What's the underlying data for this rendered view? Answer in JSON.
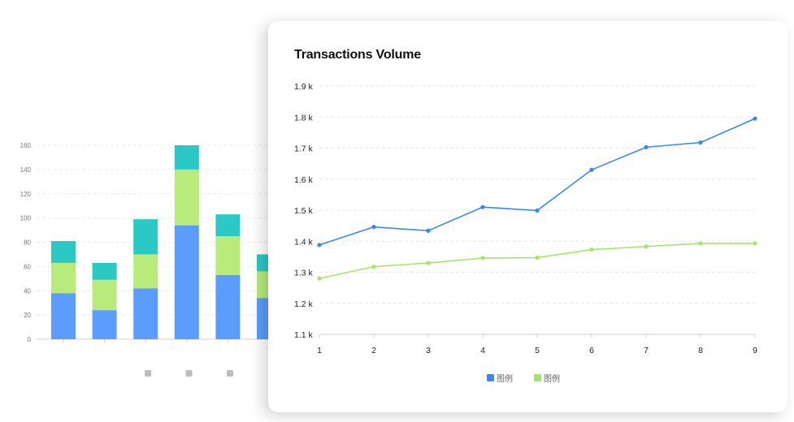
{
  "chart_data": [
    {
      "type": "bar",
      "stacked": true,
      "categories": [
        "",
        "",
        "",
        "",
        "",
        ""
      ],
      "series": [
        {
          "values": [
            38,
            24,
            42,
            94,
            53,
            34
          ],
          "color": "#5b9cfc"
        },
        {
          "values": [
            25,
            25,
            28,
            46,
            32,
            22
          ],
          "color": "#b8ea7c"
        },
        {
          "values": [
            18,
            14,
            29,
            20,
            18,
            14
          ],
          "color": "#2cc8c5"
        }
      ],
      "ylim": [
        0,
        160
      ],
      "yticks": [
        "0",
        "20",
        "40",
        "60",
        "80",
        "100",
        "120",
        "140",
        "160"
      ],
      "grid": true,
      "legend_placement": "bottom",
      "legend_color": "#bdbdbd"
    },
    {
      "type": "line",
      "title": "Transactions Volume",
      "x": [
        1,
        2,
        3,
        4,
        5,
        6,
        7,
        8,
        9
      ],
      "xticks": [
        "1",
        "2",
        "3",
        "4",
        "5",
        "6",
        "7",
        "8",
        "9"
      ],
      "series": [
        {
          "name": "图例",
          "values": [
            1388,
            1446,
            1434,
            1510,
            1499,
            1630,
            1703,
            1718,
            1795
          ],
          "color": "#3a86f5"
        },
        {
          "name": "图例",
          "values": [
            1280,
            1318,
            1330,
            1346,
            1347,
            1373,
            1383,
            1393,
            1393
          ],
          "color": "#a4e56a"
        }
      ],
      "ylim": [
        1100,
        1900
      ],
      "yticks": [
        "1.1 k",
        "1.2 k",
        "1.3 k",
        "1.4 k",
        "1.5 k",
        "1.6 k",
        "1.7 k",
        "1.8 k",
        "1.9 k"
      ],
      "grid": true,
      "legend_placement": "bottom"
    }
  ]
}
